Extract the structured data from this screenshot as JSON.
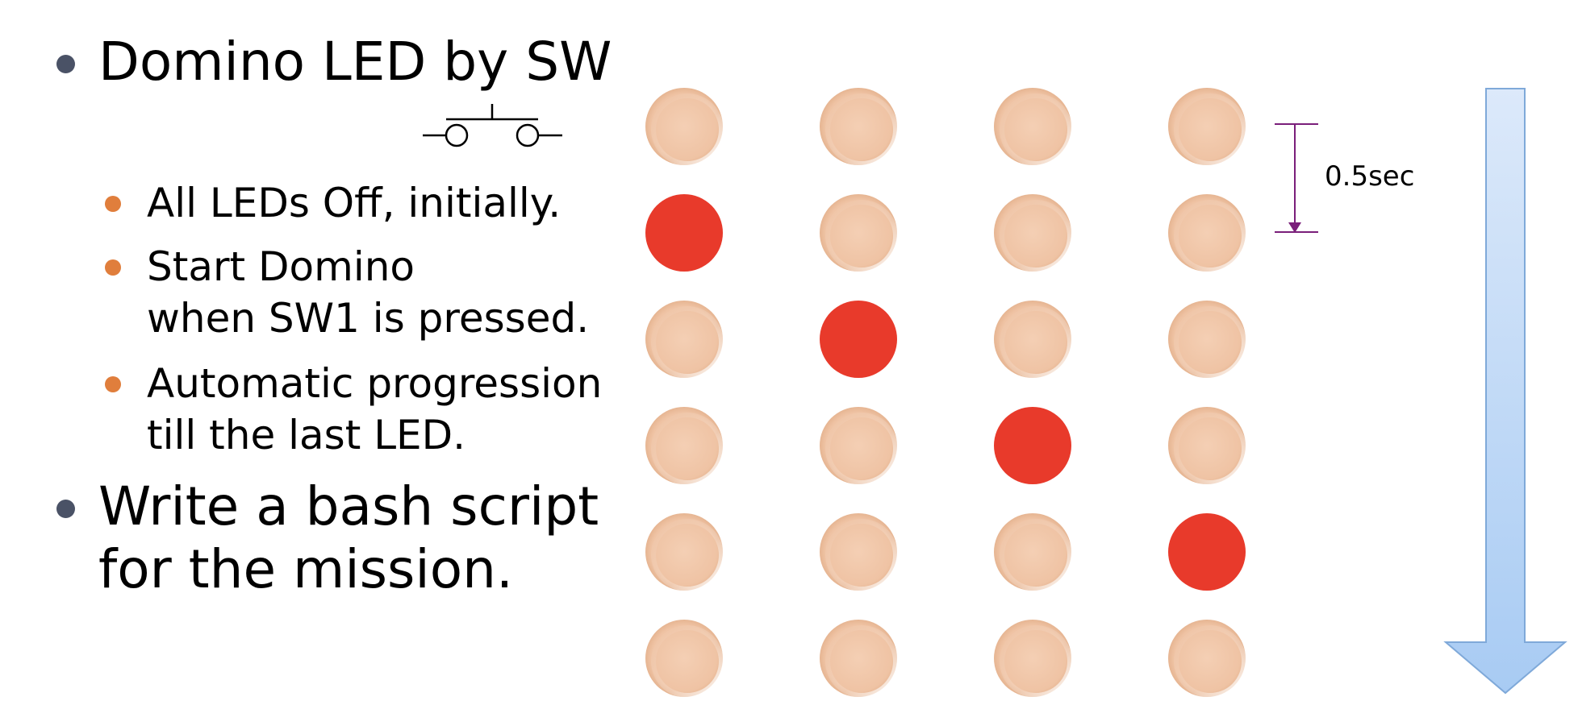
{
  "bullets": [
    {
      "lines": [
        "Domino LED by SW"
      ],
      "sub": [
        {
          "lines": [
            "All LEDs Off, initially."
          ]
        },
        {
          "lines": [
            "Start Domino",
            "when SW1 is pressed."
          ]
        },
        {
          "lines": [
            "Automatic progression",
            "till the last LED."
          ]
        }
      ]
    },
    {
      "lines": [
        "Write a bash script",
        "for the mission."
      ]
    }
  ],
  "timing_label": "0.5sec",
  "led_grid": {
    "rows": 6,
    "cols": 4,
    "lit": [
      [
        1,
        0
      ],
      [
        2,
        1
      ],
      [
        3,
        2
      ],
      [
        4,
        3
      ]
    ]
  },
  "colors": {
    "led_on": "#e83a2b",
    "led_off": "#f2c9ad",
    "timing_marker": "#7a1f7a",
    "arrow_fill": "#b9d6f6",
    "arrow_stroke": "#7fa9d9",
    "bullet_main": "#4a5266",
    "bullet_sub": "#e07e3c"
  }
}
